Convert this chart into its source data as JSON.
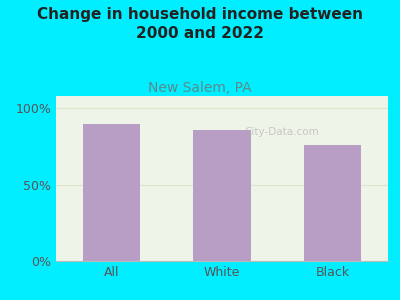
{
  "title": "Change in household income between\n2000 and 2022",
  "subtitle": "New Salem, PA",
  "categories": [
    "All",
    "White",
    "Black"
  ],
  "values": [
    90,
    86,
    76
  ],
  "bar_color": "#b89ec4",
  "title_fontsize": 11,
  "subtitle_fontsize": 10,
  "subtitle_color": "#5b8a8a",
  "tick_label_fontsize": 9,
  "ytick_labels": [
    "0%",
    "50%",
    "100%"
  ],
  "ytick_values": [
    0,
    50,
    100
  ],
  "ylim": [
    0,
    108
  ],
  "background_color": "#00eeff",
  "plot_bg_color": "#eef4e8",
  "grid_color": "#d8e8cc",
  "watermark": "City-Data.com",
  "bar_width": 0.52
}
